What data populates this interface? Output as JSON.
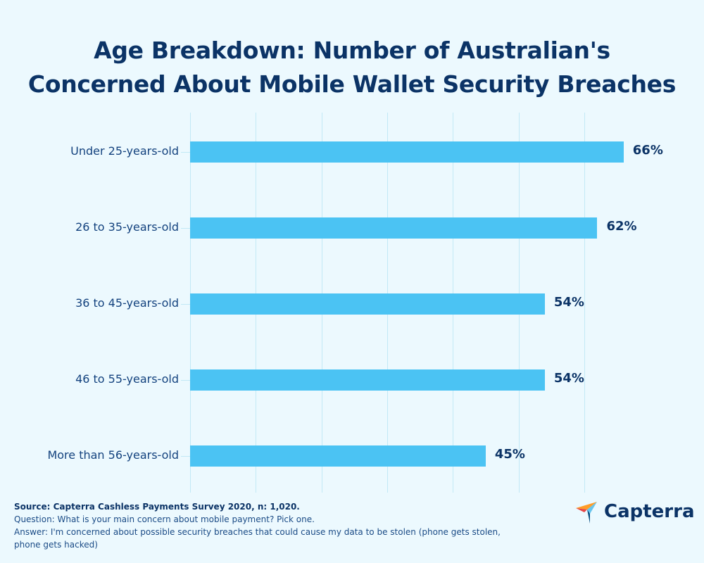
{
  "title": {
    "line1": "Age Breakdown: Number of Australian's",
    "line2": "Concerned About Mobile Wallet Security Breaches"
  },
  "chart_data": {
    "type": "bar",
    "orientation": "horizontal",
    "title": "Age Breakdown: Number of Australian's Concerned About Mobile Wallet Security Breaches",
    "categories": [
      "Under 25-years-old",
      "26 to 35-years-old",
      "36 to 45-years-old",
      "46 to 55-years-old",
      "More than 56-years-old"
    ],
    "values": [
      66,
      62,
      54,
      54,
      45
    ],
    "value_labels": [
      "66%",
      "62%",
      "54%",
      "54%",
      "45%"
    ],
    "xlabel": "",
    "ylabel": "",
    "xlim": [
      0,
      70
    ],
    "grid": true,
    "grid_interval": 10,
    "legend": null,
    "bar_color": "#4bc3f3"
  },
  "footer": {
    "source": "Source: Capterra Cashless Payments Survey 2020, n: 1,020.",
    "question": "Question: What is your main concern about mobile payment? Pick one.",
    "answer": "Answer: I'm concerned about possible security breaches that could cause my data to be stolen (phone gets stolen, phone gets hacked)"
  },
  "logo": {
    "text": "Capterra",
    "icon": "capterra-arrow-icon"
  },
  "colors": {
    "background": "#ecf9fe",
    "bar": "#4bc3f3",
    "title": "#0b3366",
    "grid": "#c2e9f6"
  }
}
